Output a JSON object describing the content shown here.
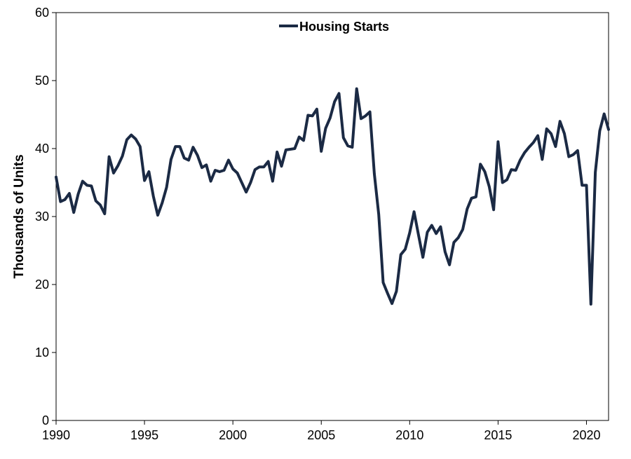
{
  "chart_data": {
    "type": "line",
    "title": "",
    "xlabel": "",
    "ylabel": "Thousands of Units",
    "xlim": [
      1990,
      2021.25
    ],
    "ylim": [
      0,
      60
    ],
    "xticks": [
      1990,
      1995,
      2000,
      2005,
      2010,
      2015,
      2020
    ],
    "yticks": [
      0,
      10,
      20,
      30,
      40,
      50,
      60
    ],
    "grid": false,
    "legend": {
      "position": "top-center",
      "entries": [
        "Housing Starts"
      ]
    },
    "series": [
      {
        "name": "Housing Starts",
        "color": "#1b2a44",
        "x": [
          1990.0,
          1990.25,
          1990.5,
          1990.75,
          1991.0,
          1991.25,
          1991.5,
          1991.75,
          1992.0,
          1992.25,
          1992.5,
          1992.75,
          1993.0,
          1993.25,
          1993.5,
          1993.75,
          1994.0,
          1994.25,
          1994.5,
          1994.75,
          1995.0,
          1995.25,
          1995.5,
          1995.75,
          1996.0,
          1996.25,
          1996.5,
          1996.75,
          1997.0,
          1997.25,
          1997.5,
          1997.75,
          1998.0,
          1998.25,
          1998.5,
          1998.75,
          1999.0,
          1999.25,
          1999.5,
          1999.75,
          2000.0,
          2000.25,
          2000.5,
          2000.75,
          2001.0,
          2001.25,
          2001.5,
          2001.75,
          2002.0,
          2002.25,
          2002.5,
          2002.75,
          2003.0,
          2003.25,
          2003.5,
          2003.75,
          2004.0,
          2004.25,
          2004.5,
          2004.75,
          2005.0,
          2005.25,
          2005.5,
          2005.75,
          2006.0,
          2006.25,
          2006.5,
          2006.75,
          2007.0,
          2007.25,
          2007.5,
          2007.75,
          2008.0,
          2008.25,
          2008.5,
          2008.75,
          2009.0,
          2009.25,
          2009.5,
          2009.75,
          2010.0,
          2010.25,
          2010.5,
          2010.75,
          2011.0,
          2011.25,
          2011.5,
          2011.75,
          2012.0,
          2012.25,
          2012.5,
          2012.75,
          2013.0,
          2013.25,
          2013.5,
          2013.75,
          2014.0,
          2014.25,
          2014.5,
          2014.75,
          2015.0,
          2015.25,
          2015.5,
          2015.75,
          2016.0,
          2016.25,
          2016.5,
          2016.75,
          2017.0,
          2017.25,
          2017.5,
          2017.75,
          2018.0,
          2018.25,
          2018.5,
          2018.75,
          2019.0,
          2019.25,
          2019.5,
          2019.75,
          2020.0,
          2020.25,
          2020.5,
          2020.75,
          2021.0,
          2021.25
        ],
        "values": [
          35.8,
          32.2,
          32.5,
          33.4,
          30.6,
          33.3,
          35.2,
          34.6,
          34.5,
          32.3,
          31.7,
          30.4,
          38.8,
          36.4,
          37.5,
          38.9,
          41.3,
          42.0,
          41.4,
          40.3,
          35.3,
          36.6,
          33.0,
          30.2,
          32.0,
          34.3,
          38.4,
          40.3,
          40.3,
          38.6,
          38.3,
          40.2,
          39.0,
          37.2,
          37.6,
          35.2,
          36.8,
          36.6,
          36.8,
          38.3,
          37.0,
          36.4,
          35.0,
          33.6,
          35.0,
          36.9,
          37.3,
          37.3,
          38.1,
          35.2,
          39.5,
          37.4,
          39.8,
          39.9,
          40.0,
          41.7,
          41.2,
          44.9,
          44.8,
          45.8,
          39.6,
          43.0,
          44.5,
          46.9,
          48.1,
          41.6,
          40.4,
          40.2,
          48.8,
          44.4,
          44.8,
          45.4,
          36.3,
          30.3,
          20.3,
          18.7,
          17.2,
          19.0,
          24.4,
          25.2,
          27.6,
          30.7,
          27.3,
          24.0,
          27.7,
          28.7,
          27.5,
          28.5,
          24.8,
          22.9,
          26.2,
          26.9,
          28.1,
          31.1,
          32.7,
          32.9,
          37.7,
          36.6,
          34.4,
          31.0,
          41.0,
          35.0,
          35.4,
          36.9,
          36.8,
          38.3,
          39.4,
          40.2,
          40.9,
          41.9,
          38.4,
          42.9,
          42.2,
          40.3,
          44.0,
          42.2,
          38.8,
          39.1,
          39.7,
          34.6,
          34.6,
          17.1,
          36.5,
          42.6,
          45.1,
          42.8
        ]
      }
    ]
  }
}
